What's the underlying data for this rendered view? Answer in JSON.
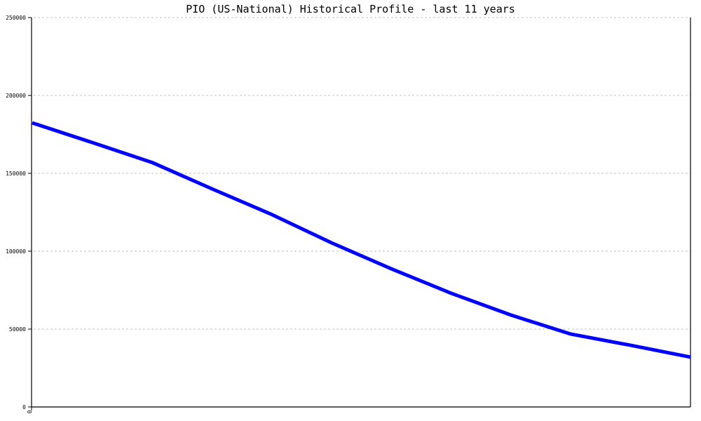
{
  "chart_data": {
    "type": "line",
    "title": "PIO (US-National) Historical Profile - last 11 years",
    "xlabel": "",
    "ylabel": "",
    "x_tick_labels": [
      "0"
    ],
    "ylim": [
      0,
      250000
    ],
    "y_ticks": [
      0,
      50000,
      100000,
      150000,
      200000,
      250000
    ],
    "y_tick_labels": [
      "0",
      "50000",
      "100000",
      "150000",
      "200000",
      "250000"
    ],
    "grid": "horizontal dashed",
    "series": [
      {
        "color": "#0000ff",
        "values": [
          182400,
          169800,
          157000,
          140100,
          123600,
          105400,
          88700,
          73000,
          59000,
          46800,
          39600,
          32000
        ]
      }
    ]
  }
}
